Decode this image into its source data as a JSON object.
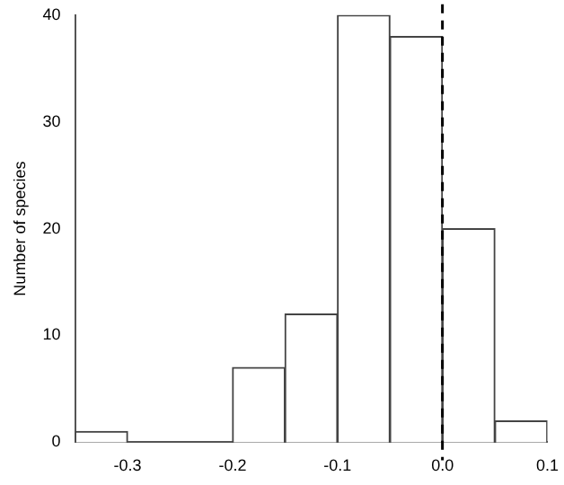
{
  "chart_data": {
    "type": "histogram",
    "ylabel": "Number of species",
    "bins": [
      -0.35,
      -0.3,
      -0.25,
      -0.2,
      -0.15,
      -0.1,
      -0.05,
      0,
      0.05,
      0.1
    ],
    "values": [
      1,
      0,
      0,
      7,
      12,
      40,
      38,
      20,
      2
    ],
    "color": "#ffffff",
    "xlim": [
      -0.35,
      0.1
    ],
    "xticks": [
      -0.3,
      -0.2,
      -0.1,
      {
        "value": 0,
        "label": "0.0"
      },
      0.1
    ],
    "ylim": [
      0,
      40
    ],
    "yticks": [
      0,
      10,
      20,
      30,
      40
    ],
    "ref_lines": [
      {
        "axis": "x",
        "value": 0,
        "line_style": "dashed",
        "color": "#000000"
      }
    ],
    "grid": false,
    "legend": false
  }
}
